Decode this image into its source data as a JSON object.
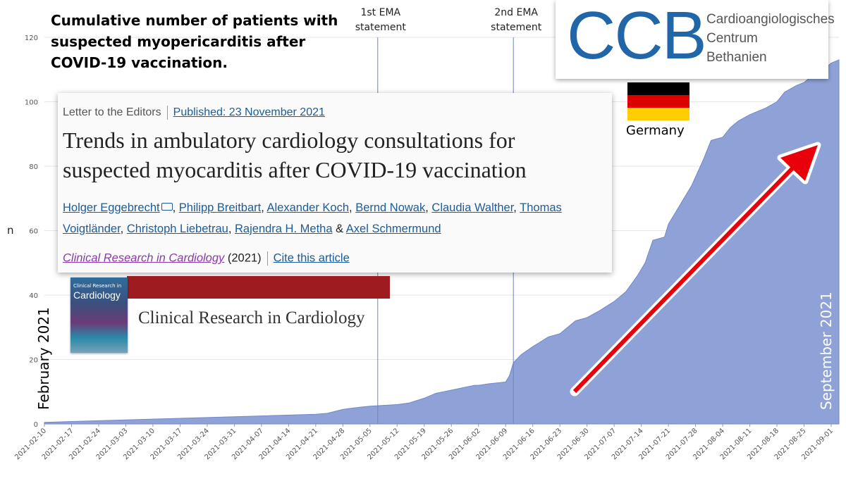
{
  "headline": "Cumulative number of patients with suspected myopericarditis after COVID-19 vaccination.",
  "chart_data": {
    "type": "area",
    "title": "",
    "xlabel": "",
    "ylabel": "n",
    "ylim": [
      0,
      120
    ],
    "yticks": [
      0,
      20,
      40,
      60,
      80,
      100,
      120
    ],
    "grid": true,
    "x_start": "2021-02-10",
    "x_end": "2021-09-03",
    "x": [
      "2021-02-10",
      "2021-02-24",
      "2021-03-10",
      "2021-03-24",
      "2021-04-07",
      "2021-04-21",
      "2021-04-24",
      "2021-04-28",
      "2021-05-01",
      "2021-05-05",
      "2021-05-12",
      "2021-05-15",
      "2021-05-19",
      "2021-05-22",
      "2021-05-26",
      "2021-05-30",
      "2021-06-01",
      "2021-06-02",
      "2021-06-05",
      "2021-06-09",
      "2021-06-10",
      "2021-06-11",
      "2021-06-13",
      "2021-06-16",
      "2021-06-20",
      "2021-06-23",
      "2021-06-27",
      "2021-06-30",
      "2021-07-03",
      "2021-07-07",
      "2021-07-10",
      "2021-07-13",
      "2021-07-15",
      "2021-07-17",
      "2021-07-20",
      "2021-07-21",
      "2021-07-24",
      "2021-07-27",
      "2021-07-30",
      "2021-08-01",
      "2021-08-04",
      "2021-08-06",
      "2021-08-08",
      "2021-08-11",
      "2021-08-13",
      "2021-08-15",
      "2021-08-18",
      "2021-08-20",
      "2021-08-23",
      "2021-08-25",
      "2021-08-27",
      "2021-08-30",
      "2021-09-01",
      "2021-09-03"
    ],
    "values": [
      0.5,
      1,
      1.5,
      2,
      2.5,
      3,
      3.3,
      4.5,
      5,
      5.5,
      6,
      6.5,
      8,
      9.5,
      10.5,
      11.5,
      12,
      12,
      12.5,
      13,
      15,
      19,
      21.5,
      24,
      27,
      28,
      32,
      33,
      35,
      38,
      41,
      46,
      50,
      57,
      58,
      62,
      68,
      74,
      82,
      88,
      89,
      92,
      94,
      96,
      97,
      98,
      100,
      103,
      105,
      106,
      108,
      110,
      112,
      113
    ],
    "xtick_labels": [
      "2021-02-10",
      "2021-02-17",
      "2021-02-24",
      "2021-03-03",
      "2021-03-10",
      "2021-03-17",
      "2021-03-24",
      "2021-03-31",
      "2021-04-07",
      "2021-04-14",
      "2021-04-21",
      "2021-04-28",
      "2021-05-05",
      "2021-05-12",
      "2021-05-19",
      "2021-05-26",
      "2021-06-02",
      "2021-06-09",
      "2021-06-16",
      "2021-06-23",
      "2021-06-30",
      "2021-07-07",
      "2021-07-14",
      "2021-07-21",
      "2021-07-28",
      "2021-08-04",
      "2021-08-11",
      "2021-08-18",
      "2021-08-25",
      "2021-09-01"
    ],
    "annotations": [
      {
        "date": "2021-05-07",
        "label_line1": "1st EMA",
        "label_line2": "statement"
      },
      {
        "date": "2021-06-11",
        "label_line1": "2nd EMA",
        "label_line2": "statement"
      }
    ],
    "start_label": "February 2021",
    "end_label": "September 2021",
    "colors": {
      "area": "#8fa2d8",
      "area_stroke": "#7386c8",
      "arrow": "#e8000b",
      "grid": "#e6e6e6",
      "vline": "#6f86b8"
    }
  },
  "article": {
    "type": "Letter to the Editors",
    "published": "Published: 23 November 2021",
    "title": "Trends in ambulatory cardiology consultations for suspected myocarditis after COVID-19 vaccination",
    "authors": [
      "Holger Eggebrecht",
      "Philipp Breitbart",
      "Alexander Koch",
      "Bernd Nowak",
      "Claudia Walther",
      "Thomas Voigtländer",
      "Christoph Liebetrau",
      "Rajendra H. Metha",
      "Axel Schmermund"
    ],
    "journal": "Clinical Research in Cardiology",
    "year": "(2021)",
    "cite": "Cite this article"
  },
  "journal_banner": {
    "title": "Clinical Research in Cardiology",
    "cover_small": "Clinical Research in",
    "cover_big": "Cardiology"
  },
  "logo": {
    "letters": "CCB",
    "name_line1": "Cardioangiologisches",
    "name_line2": "Centrum",
    "name_line3": "Bethanien"
  },
  "country": "Germany"
}
